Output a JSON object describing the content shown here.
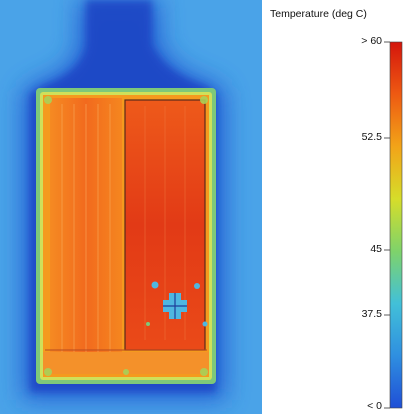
{
  "legend": {
    "title": "Temperature (deg C)",
    "ticks": [
      {
        "label": "> 60",
        "value": 60
      },
      {
        "label": "52.5",
        "value": 52.5
      },
      {
        "label": "45",
        "value": 45
      },
      {
        "label": "37.5",
        "value": 37.5
      },
      {
        "label": "< 0",
        "value": 0
      }
    ],
    "colorscale": [
      "#1f4fd6",
      "#2f8fe0",
      "#42c0d8",
      "#7fd36a",
      "#d6dd2a",
      "#f2a418",
      "#ee5a12",
      "#d4150c"
    ]
  },
  "colors": {
    "background": "#4aa3e8",
    "glow_outer": "#2a6fd6",
    "glow_inner": "#1f48c8",
    "board": "#f59a1e",
    "cell_left": "#f36e1e",
    "cell_right": "#e8421a",
    "edge": "#7ec87a",
    "hotspot": "#4fb7e0"
  }
}
